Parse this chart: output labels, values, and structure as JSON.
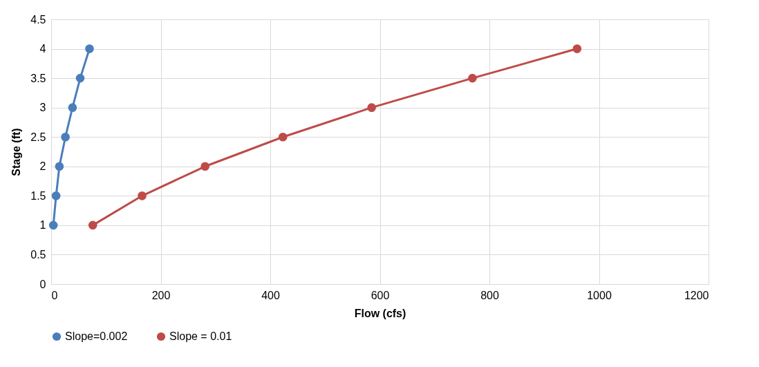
{
  "chart_data": {
    "type": "line",
    "xlabel": "Flow (cfs)",
    "ylabel": "Stage (ft)",
    "xlim": [
      0,
      1200
    ],
    "xticks": [
      0,
      200,
      400,
      600,
      800,
      1000,
      1200
    ],
    "ylim": [
      0,
      4.5
    ],
    "yticks": [
      0,
      0.5,
      1,
      1.5,
      2,
      2.5,
      3,
      3.5,
      4,
      4.5
    ],
    "grid": true,
    "legend": "bottom",
    "marker": "circle",
    "line_style": "solid",
    "series": [
      {
        "name": "Slope=0.002",
        "color": "#4a7ebb",
        "x": [
          4,
          9,
          15,
          26,
          39,
          53,
          70
        ],
        "values": [
          1,
          1.5,
          2,
          2.5,
          3,
          3.5,
          4
        ]
      },
      {
        "name": "Slope = 0.01",
        "color": "#be4b48",
        "x": [
          76,
          166,
          281,
          423,
          585,
          769,
          960
        ],
        "values": [
          1,
          1.5,
          2,
          2.5,
          3,
          3.5,
          4
        ]
      }
    ]
  }
}
